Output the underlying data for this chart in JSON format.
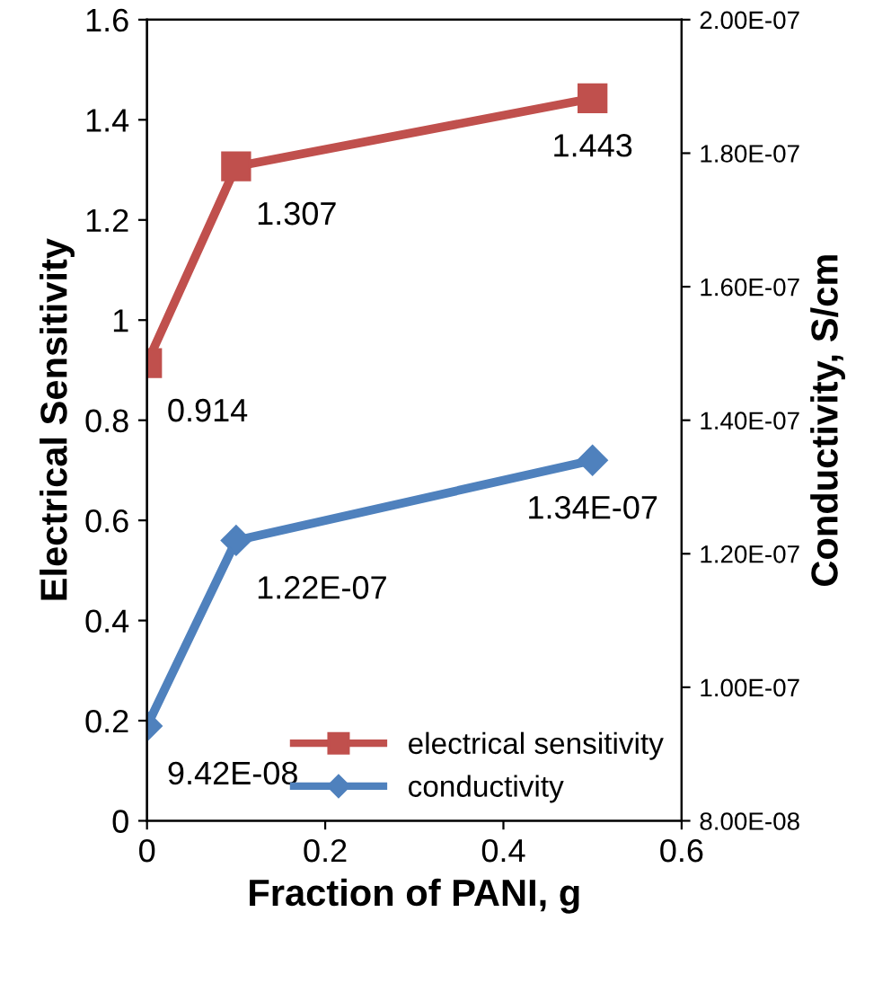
{
  "chart_data": {
    "type": "line",
    "xlabel": "Fraction of PANI, g",
    "ylabel": "Electrical Sensitivity",
    "y2label": "Conductivity, S/cm",
    "x": [
      0,
      0.1,
      0.5
    ],
    "series": [
      {
        "name": "electrical sensitivity",
        "color": "#c0504d",
        "marker": "square",
        "values": [
          0.914,
          1.307,
          1.443
        ],
        "value_labels": [
          "0.914",
          "1.307",
          "1.443"
        ]
      },
      {
        "name": "conductivity",
        "color": "#4f81bd",
        "marker": "diamond",
        "axis": "y2",
        "values": [
          9.42e-08,
          1.22e-07,
          1.34e-07
        ],
        "value_labels": [
          "9.42E-08",
          "1.22E-07",
          "1.34E-07"
        ]
      }
    ],
    "xlim": [
      0,
      0.6
    ],
    "xticks": [
      0,
      0.2,
      0.4,
      0.6
    ],
    "ylim": [
      0,
      1.6
    ],
    "yticks": [
      0,
      0.2,
      0.4,
      0.6,
      0.8,
      1,
      1.2,
      1.4,
      1.6
    ],
    "y2lim": [
      8e-08,
      2e-07
    ],
    "y2ticks": [
      {
        "value": 8e-08,
        "label": "8.00E-08"
      },
      {
        "value": 1e-07,
        "label": "1.00E-07"
      },
      {
        "value": 1.2e-07,
        "label": "1.20E-07"
      },
      {
        "value": 1.4e-07,
        "label": "1.40E-07"
      },
      {
        "value": 1.6e-07,
        "label": "1.60E-07"
      },
      {
        "value": 1.8e-07,
        "label": "1.80E-07"
      },
      {
        "value": 2e-07,
        "label": "2.00E-07"
      }
    ],
    "legend": "bottom right",
    "grid": false,
    "line_style": "solid"
  }
}
